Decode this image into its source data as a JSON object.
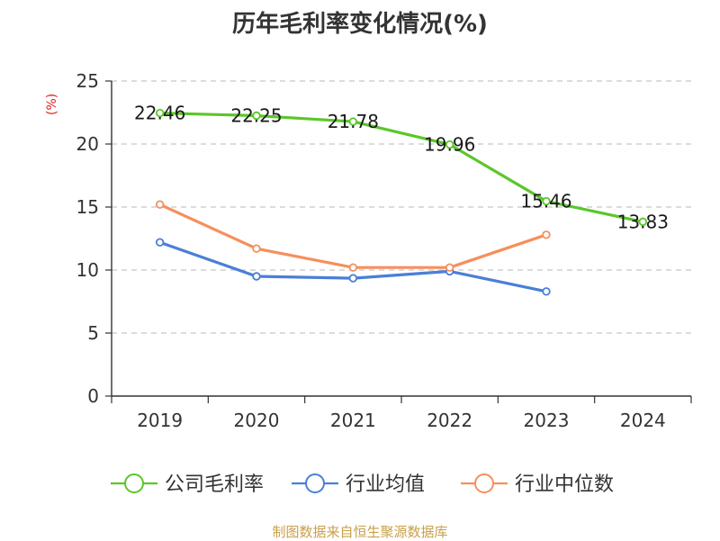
{
  "chart_data": {
    "type": "line",
    "title": "历年毛利率变化情况(%)",
    "ylabel": "(%)",
    "categories": [
      "2019",
      "2020",
      "2021",
      "2022",
      "2023",
      "2024"
    ],
    "ylim": [
      0,
      25
    ],
    "yticks": [
      "0",
      "5",
      "10",
      "15",
      "20",
      "25"
    ],
    "grid": true,
    "legend_position": "bottom",
    "series": [
      {
        "name": "公司毛利率",
        "color": "#5cc62a",
        "values": [
          22.46,
          22.25,
          21.78,
          19.96,
          15.46,
          13.83
        ],
        "labels": [
          "22.46",
          "22.25",
          "21.78",
          "19.96",
          "15.46",
          "13.83"
        ]
      },
      {
        "name": "行业均值",
        "color": "#4a7fd8",
        "values": [
          12.2,
          9.5,
          9.35,
          9.9,
          8.3,
          null
        ]
      },
      {
        "name": "行业中位数",
        "color": "#f68f5c",
        "values": [
          15.2,
          11.7,
          10.2,
          10.2,
          12.8,
          null
        ]
      }
    ]
  },
  "footer": "制图数据来自恒生聚源数据库"
}
